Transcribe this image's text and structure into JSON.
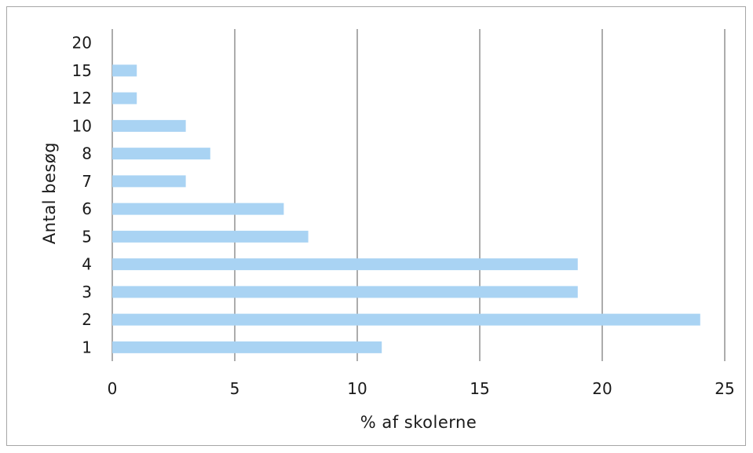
{
  "chart_data": {
    "type": "bar",
    "orientation": "horizontal",
    "categories": [
      "1",
      "2",
      "3",
      "4",
      "5",
      "6",
      "7",
      "8",
      "10",
      "12",
      "15",
      "20"
    ],
    "values": [
      11,
      24,
      19,
      19,
      8,
      7,
      3,
      4,
      3,
      1,
      1,
      0
    ],
    "xlabel": "% af skolerne",
    "ylabel": "Antal besøg",
    "xlim": [
      0,
      25
    ],
    "xticks": [
      "0",
      "5",
      "10",
      "15",
      "20",
      "25"
    ],
    "grid": "vertical",
    "bar_color": "#a9d3f3",
    "grid_color": "#7f7f7f"
  }
}
